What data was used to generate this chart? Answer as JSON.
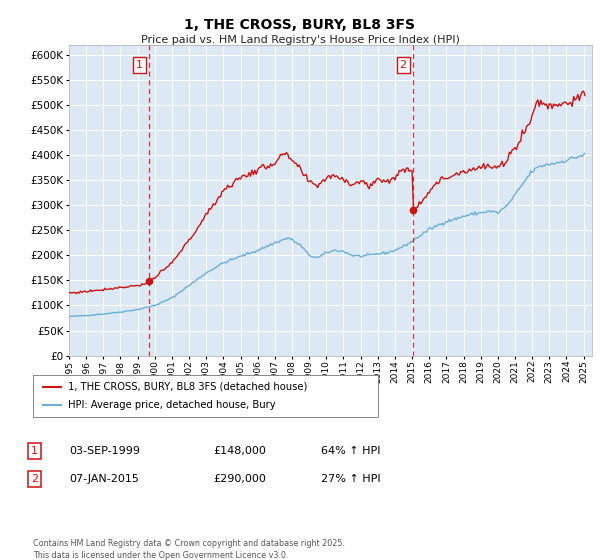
{
  "title": "1, THE CROSS, BURY, BL8 3FS",
  "subtitle": "Price paid vs. HM Land Registry's House Price Index (HPI)",
  "bg_color": "#dce9f5",
  "fig_bg_color": "#ffffff",
  "hpi_line_color": "#6baed6",
  "price_line_color": "#cc1111",
  "vline_color": "#cc1111",
  "ylim": [
    0,
    620000
  ],
  "ytick_step": 50000,
  "xmin": 1995.0,
  "xmax": 2025.5,
  "sale1_x": 1999.67,
  "sale1_y": 148000,
  "sale1_label": "1",
  "sale2_x": 2015.03,
  "sale2_y": 290000,
  "sale2_label": "2",
  "legend_entry1": "1, THE CROSS, BURY, BL8 3FS (detached house)",
  "legend_entry2": "HPI: Average price, detached house, Bury",
  "annotation1_date": "03-SEP-1999",
  "annotation1_price": "£148,000",
  "annotation1_hpi": "64% ↑ HPI",
  "annotation2_date": "07-JAN-2015",
  "annotation2_price": "£290,000",
  "annotation2_hpi": "27% ↑ HPI",
  "footer": "Contains HM Land Registry data © Crown copyright and database right 2025.\nThis data is licensed under the Open Government Licence v3.0.",
  "xtick_years": [
    1995,
    1996,
    1997,
    1998,
    1999,
    2000,
    2001,
    2002,
    2003,
    2004,
    2005,
    2006,
    2007,
    2008,
    2009,
    2010,
    2011,
    2012,
    2013,
    2014,
    2015,
    2016,
    2017,
    2018,
    2019,
    2020,
    2021,
    2022,
    2023,
    2024,
    2025
  ]
}
